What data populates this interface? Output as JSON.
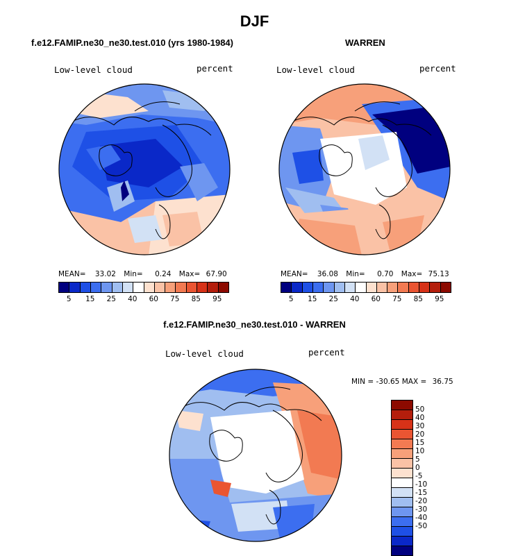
{
  "title": "DJF",
  "panels": {
    "model": {
      "title": "f.e12.FAMIP.ne30_ne30.test.010 (yrs 1980-1984)",
      "variable": "Low-level cloud",
      "units": "percent",
      "stats": {
        "mean_label": "MEAN=",
        "mean": "33.02",
        "min_label": "Min=",
        "min": "0.24",
        "max_label": "Max=",
        "max": "67.90"
      }
    },
    "obs": {
      "title": "WARREN",
      "variable": "Low-level cloud",
      "units": "percent",
      "stats": {
        "mean_label": "MEAN=",
        "mean": "36.08",
        "min_label": "Min=",
        "min": "0.70",
        "max_label": "Max=",
        "max": "75.13"
      }
    },
    "diff": {
      "title": "f.e12.FAMIP.ne30_ne30.test.010 - WARREN",
      "variable": "Low-level cloud",
      "units": "percent",
      "minmax": {
        "min_label": "MIN =",
        "min": "-30.65",
        "max_label": "MAX =",
        "max": "36.75"
      }
    }
  },
  "colorbar_abs": {
    "colors": [
      "#00007f",
      "#0a28c8",
      "#1e50e6",
      "#3c6ef0",
      "#6e96f0",
      "#a0bef0",
      "#d2e1f5",
      "#ffffff",
      "#fde1cf",
      "#fac2a6",
      "#f7a07a",
      "#f27a52",
      "#ea5532",
      "#d73218",
      "#b41e0c",
      "#8c0a00"
    ],
    "tick_labels": [
      "5",
      "15",
      "25",
      "40",
      "60",
      "75",
      "85",
      "95"
    ]
  },
  "colorbar_diff": {
    "colors": [
      "#8c0a00",
      "#b41e0c",
      "#d73218",
      "#ea5532",
      "#f27a52",
      "#f7a07a",
      "#fac2a6",
      "#fde1cf",
      "#ffffff",
      "#d2e1f5",
      "#a0bef0",
      "#6e96f0",
      "#3c6ef0",
      "#1e50e6",
      "#0a28c8",
      "#00007f"
    ],
    "tick_labels": [
      "50",
      "40",
      "30",
      "20",
      "15",
      "10",
      "5",
      "0",
      "-5",
      "-10",
      "-15",
      "-20",
      "-30",
      "-40",
      "-50"
    ]
  },
  "icons": {
    "map_projection": "polar-stereographic-map-icon"
  }
}
